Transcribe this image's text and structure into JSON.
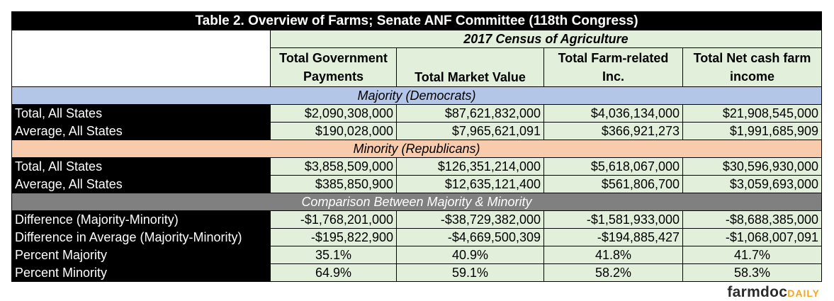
{
  "title": "Table 2. Overview of Farms; Senate ANF Committee (118th Congress)",
  "census_label": "2017 Census of Agriculture",
  "columns": [
    "Total Government Payments",
    "Total Market Value",
    "Total Farm-related Inc.",
    "Total Net cash farm income"
  ],
  "sections": {
    "majority": "Majority (Democrats)",
    "minority": "Minority (Republicans)",
    "comparison": "Comparison Between Majority & Minority"
  },
  "majority_rows": [
    {
      "label": "Total, All States",
      "values": [
        "$2,090,308,000",
        "$87,621,832,000",
        "$4,036,134,000",
        "$21,908,545,000"
      ]
    },
    {
      "label": "Average, All States",
      "values": [
        "$190,028,000",
        "$7,965,621,091",
        "$366,921,273",
        "$1,991,685,909"
      ]
    }
  ],
  "minority_rows": [
    {
      "label": "Total, All States",
      "values": [
        "$3,858,509,000",
        "$126,351,214,000",
        "$5,618,067,000",
        "$30,596,930,000"
      ]
    },
    {
      "label": "Average, All States",
      "values": [
        "$385,850,900",
        "$12,635,121,400",
        "$561,806,700",
        "$3,059,693,000"
      ]
    }
  ],
  "comparison_rows": [
    {
      "label": "Difference (Majority-Minority)",
      "values": [
        "-$1,768,201,000",
        "-$38,729,382,000",
        "-$1,581,933,000",
        "-$8,688,385,000"
      ]
    },
    {
      "label": "Difference in Average (Majority-Minority)",
      "values": [
        "-$195,822,900",
        "-$4,669,500,309",
        "-$194,885,427",
        "-$1,068,007,091"
      ]
    },
    {
      "label": "Percent Majority",
      "values": [
        "35.1%",
        "40.9%",
        "41.8%",
        "41.7%"
      ]
    },
    {
      "label": "Percent Minority",
      "values": [
        "64.9%",
        "59.1%",
        "58.2%",
        "58.3%"
      ]
    }
  ],
  "logo": {
    "main": "farmdoc",
    "sub": "DAILY"
  }
}
